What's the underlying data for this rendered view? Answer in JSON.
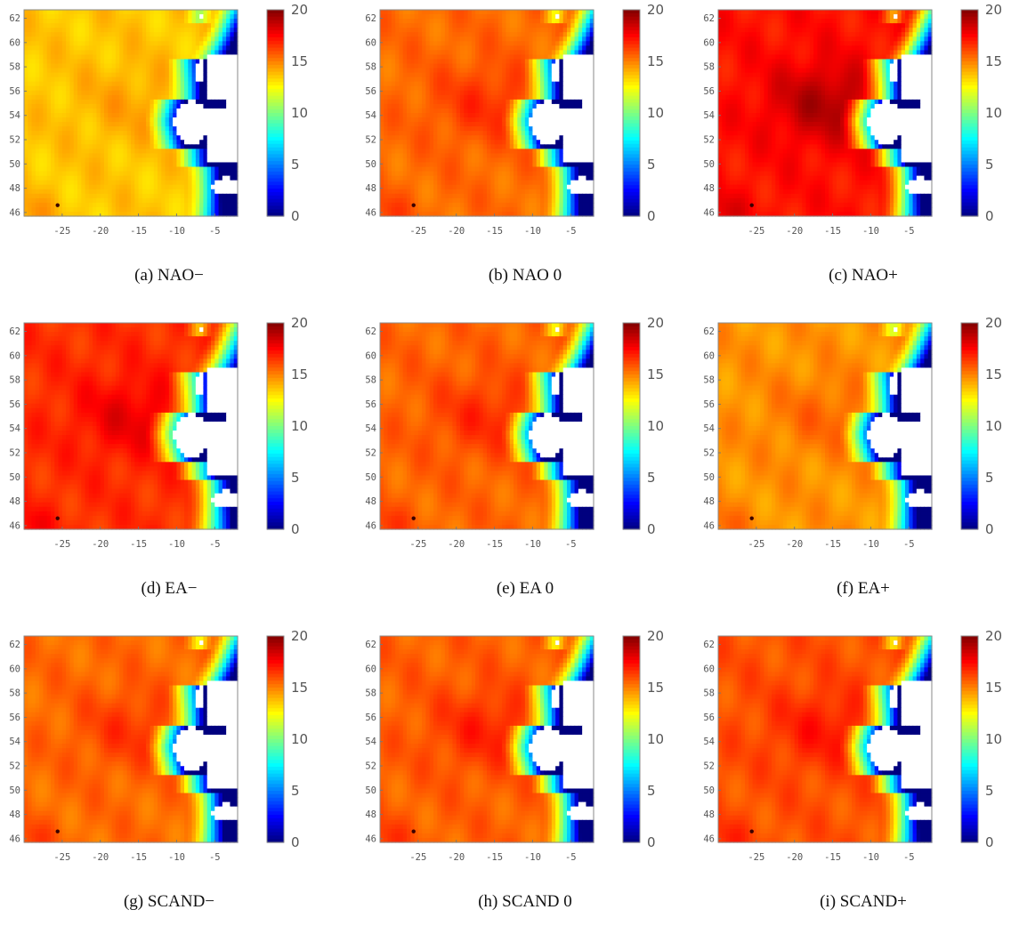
{
  "colormap": {
    "name": "jet",
    "stops": [
      "#00007f",
      "#0000ff",
      "#007fff",
      "#00ffff",
      "#7fff7f",
      "#ffff00",
      "#ff7f00",
      "#ff0000",
      "#7f0000"
    ]
  },
  "chart_data": [
    {
      "type": "heatmap",
      "caption": "(a) NAO−",
      "base": 13.6,
      "center_boost": 0.7,
      "coast_drop": 11,
      "xlim": [
        -30,
        -2
      ],
      "ylim": [
        45.7,
        62.7
      ],
      "x_ticks": [
        -25,
        -20,
        -15,
        -10,
        -5
      ],
      "y_ticks": [
        46,
        48,
        50,
        52,
        54,
        56,
        58,
        60,
        62
      ],
      "colorbar": {
        "min": 0,
        "max": 20,
        "ticks": [
          0,
          5,
          10,
          15,
          20
        ]
      }
    },
    {
      "type": "heatmap",
      "caption": "(b) NAO 0",
      "base": 15.4,
      "center_boost": 1.2,
      "coast_drop": 11,
      "xlim": [
        -30,
        -2
      ],
      "ylim": [
        45.7,
        62.7
      ],
      "x_ticks": [
        -25,
        -20,
        -15,
        -10,
        -5
      ],
      "y_ticks": [
        46,
        48,
        50,
        52,
        54,
        56,
        58,
        60,
        62
      ],
      "colorbar": {
        "min": 0,
        "max": 20,
        "ticks": [
          0,
          5,
          10,
          15,
          20
        ]
      }
    },
    {
      "type": "heatmap",
      "caption": "(c) NAO+",
      "base": 17.2,
      "center_boost": 1.9,
      "coast_drop": 11,
      "xlim": [
        -30,
        -2
      ],
      "ylim": [
        45.7,
        62.7
      ],
      "x_ticks": [
        -25,
        -20,
        -15,
        -10,
        -5
      ],
      "y_ticks": [
        46,
        48,
        50,
        52,
        54,
        56,
        58,
        60,
        62
      ],
      "colorbar": {
        "min": 0,
        "max": 20,
        "ticks": [
          0,
          5,
          10,
          15,
          20
        ]
      }
    },
    {
      "type": "heatmap",
      "caption": "(d) EA−",
      "base": 16.6,
      "center_boost": 1.3,
      "coast_drop": 9,
      "xlim": [
        -30,
        -2
      ],
      "ylim": [
        45.7,
        62.7
      ],
      "x_ticks": [
        -25,
        -20,
        -15,
        -10,
        -5
      ],
      "y_ticks": [
        46,
        48,
        50,
        52,
        54,
        56,
        58,
        60,
        62
      ],
      "colorbar": {
        "min": 0,
        "max": 20,
        "ticks": [
          0,
          5,
          10,
          15,
          20
        ]
      }
    },
    {
      "type": "heatmap",
      "caption": "(e) EA 0",
      "base": 15.5,
      "center_boost": 1.2,
      "coast_drop": 11,
      "xlim": [
        -30,
        -2
      ],
      "ylim": [
        45.7,
        62.7
      ],
      "x_ticks": [
        -25,
        -20,
        -15,
        -10,
        -5
      ],
      "y_ticks": [
        46,
        48,
        50,
        52,
        54,
        56,
        58,
        60,
        62
      ],
      "colorbar": {
        "min": 0,
        "max": 20,
        "ticks": [
          0,
          5,
          10,
          15,
          20
        ]
      }
    },
    {
      "type": "heatmap",
      "caption": "(f) EA+",
      "base": 14.6,
      "center_boost": 0.9,
      "coast_drop": 11,
      "xlim": [
        -30,
        -2
      ],
      "ylim": [
        45.7,
        62.7
      ],
      "x_ticks": [
        -25,
        -20,
        -15,
        -10,
        -5
      ],
      "y_ticks": [
        46,
        48,
        50,
        52,
        54,
        56,
        58,
        60,
        62
      ],
      "colorbar": {
        "min": 0,
        "max": 20,
        "ticks": [
          0,
          5,
          10,
          15,
          20
        ]
      }
    },
    {
      "type": "heatmap",
      "caption": "(g) SCAND−",
      "base": 15.4,
      "center_boost": 1.1,
      "coast_drop": 11,
      "xlim": [
        -30,
        -2
      ],
      "ylim": [
        45.7,
        62.7
      ],
      "x_ticks": [
        -25,
        -20,
        -15,
        -10,
        -5
      ],
      "y_ticks": [
        46,
        48,
        50,
        52,
        54,
        56,
        58,
        60,
        62
      ],
      "colorbar": {
        "min": 0,
        "max": 20,
        "ticks": [
          0,
          5,
          10,
          15,
          20
        ]
      }
    },
    {
      "type": "heatmap",
      "caption": "(h) SCAND 0",
      "base": 15.6,
      "center_boost": 1.3,
      "coast_drop": 11,
      "xlim": [
        -30,
        -2
      ],
      "ylim": [
        45.7,
        62.7
      ],
      "x_ticks": [
        -25,
        -20,
        -15,
        -10,
        -5
      ],
      "y_ticks": [
        46,
        48,
        50,
        52,
        54,
        56,
        58,
        60,
        62
      ],
      "colorbar": {
        "min": 0,
        "max": 20,
        "ticks": [
          0,
          5,
          10,
          15,
          20
        ]
      }
    },
    {
      "type": "heatmap",
      "caption": "(i) SCAND+",
      "base": 15.9,
      "center_boost": 1.2,
      "coast_drop": 11,
      "xlim": [
        -30,
        -2
      ],
      "ylim": [
        45.7,
        62.7
      ],
      "x_ticks": [
        -25,
        -20,
        -15,
        -10,
        -5
      ],
      "y_ticks": [
        46,
        48,
        50,
        52,
        54,
        56,
        58,
        60,
        62
      ],
      "colorbar": {
        "min": 0,
        "max": 20,
        "ticks": [
          0,
          5,
          10,
          15,
          20
        ]
      }
    }
  ]
}
